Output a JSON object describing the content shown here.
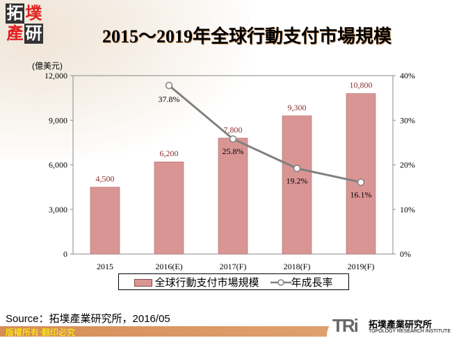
{
  "logo": {
    "chars": [
      "拓",
      "墣",
      "產",
      "研"
    ]
  },
  "title": "2015～2019年全球行動支付市場規模",
  "chart_data": {
    "type": "bar+line",
    "title": "2015～2019年全球行動支付市場規模",
    "categories": [
      "2015",
      "2016(E)",
      "2017(F)",
      "2018(F)",
      "2019(F)"
    ],
    "y_unit": "(億美元)",
    "ylim": [
      0,
      12000
    ],
    "yticks": [
      "0",
      "3,000",
      "6,000",
      "9,000",
      "12,000"
    ],
    "y2lim": [
      0,
      40
    ],
    "y2ticks": [
      "0%",
      "10%",
      "20%",
      "30%",
      "40%"
    ],
    "series": [
      {
        "name": "全球行動支付市場規模",
        "type": "bar",
        "values": [
          4500,
          6200,
          7800,
          9300,
          10800
        ],
        "labels": [
          "4,500",
          "6,200",
          "7,800",
          "9,300",
          "10,800"
        ],
        "color": "#d99594"
      },
      {
        "name": "年成長率",
        "type": "line",
        "axis": "right",
        "values": [
          null,
          37.8,
          25.8,
          19.2,
          16.1
        ],
        "labels": [
          "",
          "37.8%",
          "25.8%",
          "19.2%",
          "16.1%"
        ],
        "color": "#808080"
      }
    ],
    "legend": "bottom",
    "grid": false
  },
  "source": "Source：拓墣產業研究所，2016/05",
  "footer": {
    "copyright": "版權所有‧翻印必究",
    "brand": "TRi",
    "brand_cn": "拓墣產業研究所",
    "brand_en": "TOPOLOGY RESEARCH INSTITUTE"
  }
}
